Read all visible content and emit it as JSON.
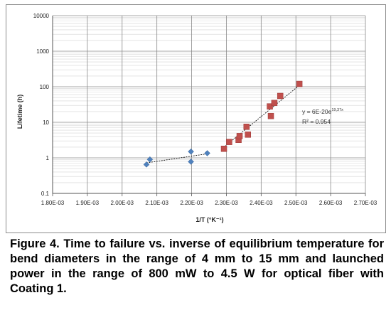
{
  "chart_data": {
    "type": "scatter",
    "xlabel": "1/T (°K⁻¹)",
    "ylabel": "Lifetime (h)",
    "xlim": [
      0.0018,
      0.0027
    ],
    "ylim": [
      0.1,
      10000
    ],
    "yscale": "log",
    "grid": true,
    "x_ticks": [
      "1.80E-03",
      "1.90E-03",
      "2.00E-03",
      "2.10E-03",
      "2.20E-03",
      "2.30E-03",
      "2.40E-03",
      "2.50E-03",
      "2.60E-03",
      "2.70E-03"
    ],
    "y_ticks": [
      "0.1",
      "1",
      "10",
      "100",
      "1000",
      "10000"
    ],
    "series": [
      {
        "marker": "diamond",
        "color": "#4f81bd",
        "points": [
          {
            "x": 0.00207,
            "y": 0.65
          },
          {
            "x": 0.00208,
            "y": 0.9
          },
          {
            "x": 0.002198,
            "y": 0.78
          },
          {
            "x": 0.002198,
            "y": 1.5
          },
          {
            "x": 0.002245,
            "y": 1.35
          }
        ],
        "trendline": {
          "x": [
            0.00207,
            0.002245
          ],
          "y": [
            0.72,
            1.3
          ]
        }
      },
      {
        "marker": "square",
        "color": "#c0504d",
        "points": [
          {
            "x": 0.002293,
            "y": 1.8
          },
          {
            "x": 0.002308,
            "y": 2.8
          },
          {
            "x": 0.002335,
            "y": 3.2
          },
          {
            "x": 0.002338,
            "y": 4.1
          },
          {
            "x": 0.002358,
            "y": 7.5
          },
          {
            "x": 0.002362,
            "y": 4.5
          },
          {
            "x": 0.002425,
            "y": 28
          },
          {
            "x": 0.002428,
            "y": 15
          },
          {
            "x": 0.002438,
            "y": 35
          },
          {
            "x": 0.002455,
            "y": 55
          },
          {
            "x": 0.00251,
            "y": 120
          }
        ],
        "trendline": {
          "x": [
            0.00229,
            0.00251
          ],
          "y": [
            1.9,
            110
          ]
        }
      }
    ],
    "annotations": {
      "equation_prefix": "y = 6E-20e",
      "equation_exponent": "19,37x",
      "r_squared": "R² = 0.954"
    }
  },
  "caption": "Figure 4. Time to failure vs. inverse of equilibrium temperature for bend diameters in the range of 4 mm to 15 mm and launched power in the range of 800 mW to 4.5 W for optical fiber with Coating 1."
}
